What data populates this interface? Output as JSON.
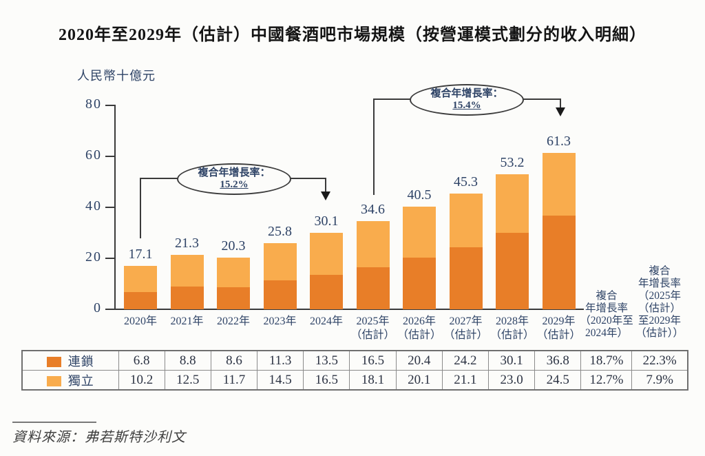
{
  "page": {
    "source": "資料來源：弗若斯特沙利文"
  },
  "chart_data": {
    "type": "bar",
    "stacked": true,
    "title": "2020年至2029年（估計）中國餐酒吧市場規模（按營運模式劃分的收入明細）",
    "unit_label": "人民幣十億元",
    "categories": [
      [
        "2020年"
      ],
      [
        "2021年"
      ],
      [
        "2022年"
      ],
      [
        "2023年"
      ],
      [
        "2024年"
      ],
      [
        "2025年",
        "（估計）"
      ],
      [
        "2026年",
        "（估計）"
      ],
      [
        "2027年",
        "（估計）"
      ],
      [
        "2028年",
        "（估計）"
      ],
      [
        "2029年",
        "（估計）"
      ]
    ],
    "series": [
      {
        "name": "連鎖",
        "color": "#E87E28",
        "values": [
          6.8,
          8.8,
          8.6,
          11.3,
          13.5,
          16.5,
          20.4,
          24.2,
          30.1,
          36.8
        ],
        "cagr_2020_2024": "18.7%",
        "cagr_2025_2029": "22.3%"
      },
      {
        "name": "獨立",
        "color": "#F9AC4D",
        "values": [
          10.2,
          12.5,
          11.7,
          14.5,
          16.5,
          18.1,
          20.1,
          21.1,
          23.0,
          24.5
        ],
        "cagr_2020_2024": "12.7%",
        "cagr_2025_2029": "7.9%"
      }
    ],
    "totals": [
      17.1,
      21.3,
      20.3,
      25.8,
      30.1,
      34.6,
      40.5,
      45.3,
      53.2,
      61.3
    ],
    "ylim": [
      0,
      80
    ],
    "yticks": [
      0,
      20,
      40,
      60,
      80
    ],
    "grid": false,
    "annotations": [
      {
        "label": "複合年增長率：",
        "value": "15.2%"
      },
      {
        "label": "複合年增長率：",
        "value": "15.4%"
      }
    ],
    "cagr_headers": [
      {
        "lines": [
          "複合",
          "年增長率",
          "（2020年至",
          "2024年）"
        ]
      },
      {
        "lines": [
          "複合",
          "年增長率",
          "（2025年",
          "（估計）",
          "至2029年",
          "（估計））"
        ]
      }
    ]
  },
  "colors": {
    "chain": "#E87E28",
    "independent": "#F9AC4D",
    "navy_text": "#2E4366",
    "line": "#3A3A3A",
    "table_border": "#8A8A8A"
  }
}
